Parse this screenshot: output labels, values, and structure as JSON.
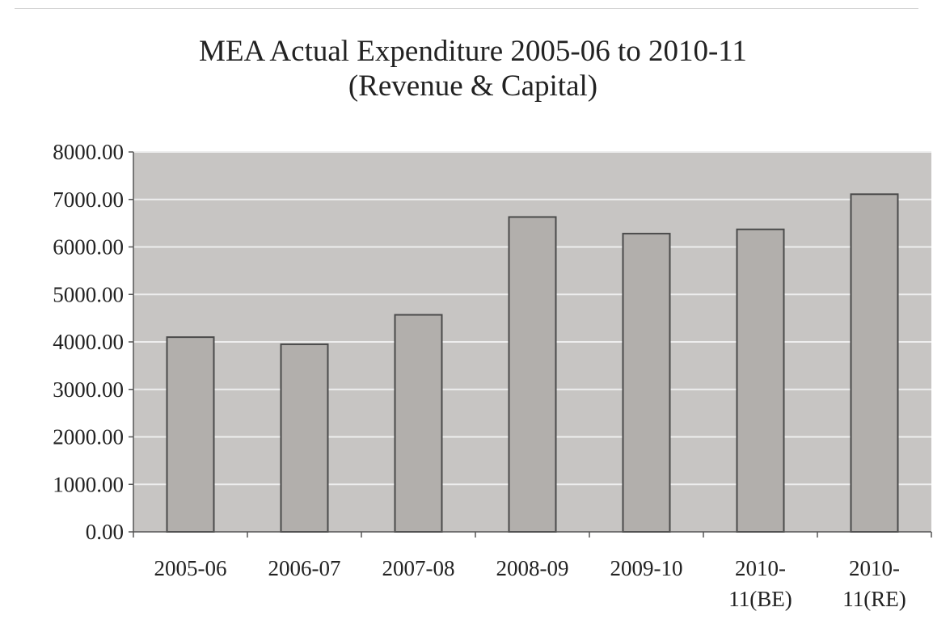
{
  "chart_data": {
    "type": "bar",
    "title": "MEA Actual Expenditure 2005-06 to 2010-11",
    "subtitle": "(Revenue & Capital)",
    "xlabel": "",
    "ylabel": "",
    "categories": [
      "2005-06",
      "2006-07",
      "2007-08",
      "2008-09",
      "2009-10",
      "2010-11(BE)",
      "2010-11(RE)"
    ],
    "category_lines": [
      [
        "2005-06"
      ],
      [
        "2006-07"
      ],
      [
        "2007-08"
      ],
      [
        "2008-09"
      ],
      [
        "2009-10"
      ],
      [
        "2010-",
        "11(BE)"
      ],
      [
        "2010-",
        "11(RE)"
      ]
    ],
    "values": [
      4100,
      3950,
      4570,
      6630,
      6280,
      6370,
      7110
    ],
    "ylim": [
      0,
      8000
    ],
    "yticks": [
      "0.00",
      "1000.00",
      "2000.00",
      "3000.00",
      "4000.00",
      "5000.00",
      "6000.00",
      "7000.00",
      "8000.00"
    ],
    "grid": true,
    "legend": "none"
  },
  "colors": {
    "plot_background": "#c7c5c3",
    "bar_fill": "#b2afac",
    "bar_stroke": "#4a4a4a",
    "gridline": "#eeeeee",
    "axis": "#555555"
  }
}
